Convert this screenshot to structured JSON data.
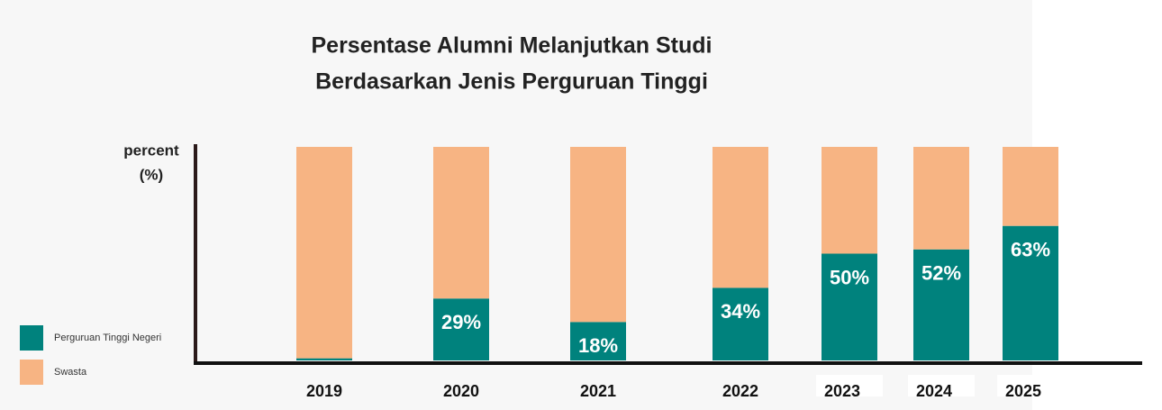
{
  "chart_data": {
    "type": "stacked_bar",
    "title": [
      "Persentase Alumni Melanjutkan Studi",
      "Berdasarkan Jenis Perguruan Tinggi"
    ],
    "y_label": [
      "percent",
      "(%)"
    ],
    "categories": [
      "2019",
      "2020",
      "2021",
      "2022",
      "2023",
      "2024",
      "2025"
    ],
    "series": [
      {
        "name": "Perguruan Tinggi Negeri",
        "color": "#00827d",
        "values": [
          1,
          29,
          18,
          34,
          50,
          52,
          63
        ],
        "value_labels": [
          null,
          "29%",
          "18%",
          "34%",
          "50%",
          "52%",
          "63%"
        ]
      },
      {
        "name": "Swasta",
        "color": "#f7b483",
        "values": [
          99,
          71,
          82,
          66,
          50,
          48,
          37
        ]
      }
    ],
    "ylim": [
      0,
      100
    ]
  }
}
